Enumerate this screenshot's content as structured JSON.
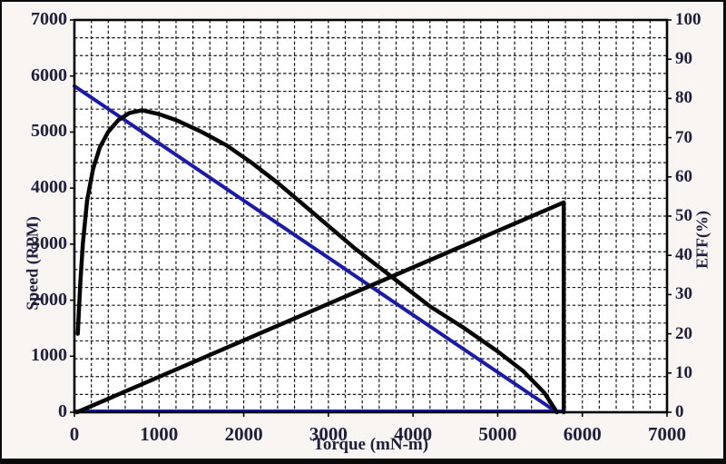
{
  "chart_data": {
    "type": "line",
    "title": "",
    "xlabel": "Torque (mN-m)",
    "ylabel_left": "Speed (RPM)",
    "ylabel_right": "EFF(%)",
    "xlim": [
      0,
      7000
    ],
    "left_ylim": [
      0,
      7000
    ],
    "right_ylim": [
      0,
      100
    ],
    "x_ticks": [
      0,
      1000,
      2000,
      3000,
      4000,
      5000,
      6000,
      7000
    ],
    "left_ticks": [
      0,
      1000,
      2000,
      3000,
      4000,
      5000,
      6000,
      7000
    ],
    "right_ticks": [
      0,
      10,
      20,
      30,
      40,
      50,
      60,
      70,
      80,
      90,
      100
    ],
    "grid": {
      "on": true,
      "style": "fine-dashed-graph-paper",
      "x_cells": 35,
      "y_cells": 22,
      "color": "#161616"
    },
    "legend": null,
    "colors": {
      "speed_line": "#1b1bab",
      "black_curves": "#060606",
      "plot_background": "#ffffff"
    },
    "series": [
      {
        "name": "speed-vs-torque-line",
        "axis": "left",
        "color": "#1b1bab",
        "width": 4,
        "points": [
          [
            0,
            5820
          ],
          [
            5700,
            0
          ]
        ]
      },
      {
        "name": "zero-speed-baseline",
        "axis": "left",
        "color": "#1b1bab",
        "width": 3,
        "points": [
          [
            0,
            25
          ],
          [
            5760,
            25
          ]
        ]
      },
      {
        "name": "efficiency-curve",
        "axis": "right",
        "color": "#060606",
        "width": 4.5,
        "points": [
          [
            40,
            20
          ],
          [
            70,
            33
          ],
          [
            100,
            43
          ],
          [
            150,
            54
          ],
          [
            220,
            62
          ],
          [
            300,
            67.5
          ],
          [
            400,
            71.5
          ],
          [
            520,
            74.5
          ],
          [
            650,
            76.3
          ],
          [
            800,
            77
          ],
          [
            1000,
            76
          ],
          [
            1200,
            74.5
          ],
          [
            1500,
            71.5
          ],
          [
            1800,
            68
          ],
          [
            2100,
            63.5
          ],
          [
            2400,
            58.5
          ],
          [
            2700,
            53
          ],
          [
            3000,
            47.5
          ],
          [
            3300,
            42
          ],
          [
            3600,
            37
          ],
          [
            3900,
            32
          ],
          [
            4200,
            27
          ],
          [
            4600,
            21.5
          ],
          [
            5000,
            15.5
          ],
          [
            5300,
            10.5
          ],
          [
            5550,
            5
          ],
          [
            5700,
            0
          ]
        ]
      },
      {
        "name": "power-line",
        "axis": "right",
        "color": "#060606",
        "width": 4.5,
        "points": [
          [
            30,
            0
          ],
          [
            5780,
            53.5
          ],
          [
            5780,
            0
          ]
        ]
      }
    ]
  }
}
